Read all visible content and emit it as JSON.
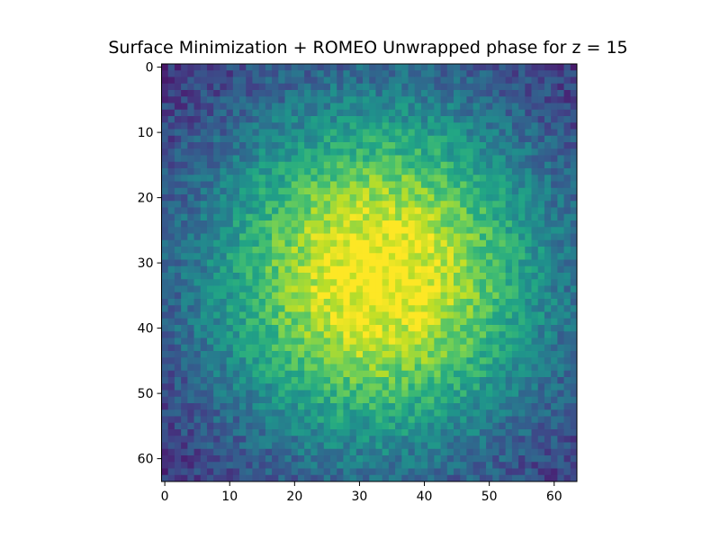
{
  "chart_data": {
    "type": "heatmap",
    "title": "Surface Minimization + ROMEO Unwrapped phase for z = 15",
    "xlabel": "",
    "ylabel": "",
    "grid": false,
    "colormap": "viridis",
    "grid_size": [
      64,
      64
    ],
    "value_range": [
      0,
      1
    ],
    "peak_center": [
      33,
      32
    ],
    "values_description_source": "image pixels; estimated smooth radial bump",
    "xlim": [
      -0.5,
      63.5
    ],
    "ylim": [
      63.5,
      -0.5
    ],
    "x_ticks": [
      0,
      10,
      20,
      30,
      40,
      50,
      60
    ],
    "y_ticks": [
      0,
      10,
      20,
      30,
      40,
      50,
      60
    ],
    "x_tick_labels": [
      "0",
      "10",
      "20",
      "30",
      "40",
      "50",
      "60"
    ],
    "y_tick_labels": [
      "0",
      "10",
      "20",
      "30",
      "40",
      "50",
      "60"
    ]
  }
}
